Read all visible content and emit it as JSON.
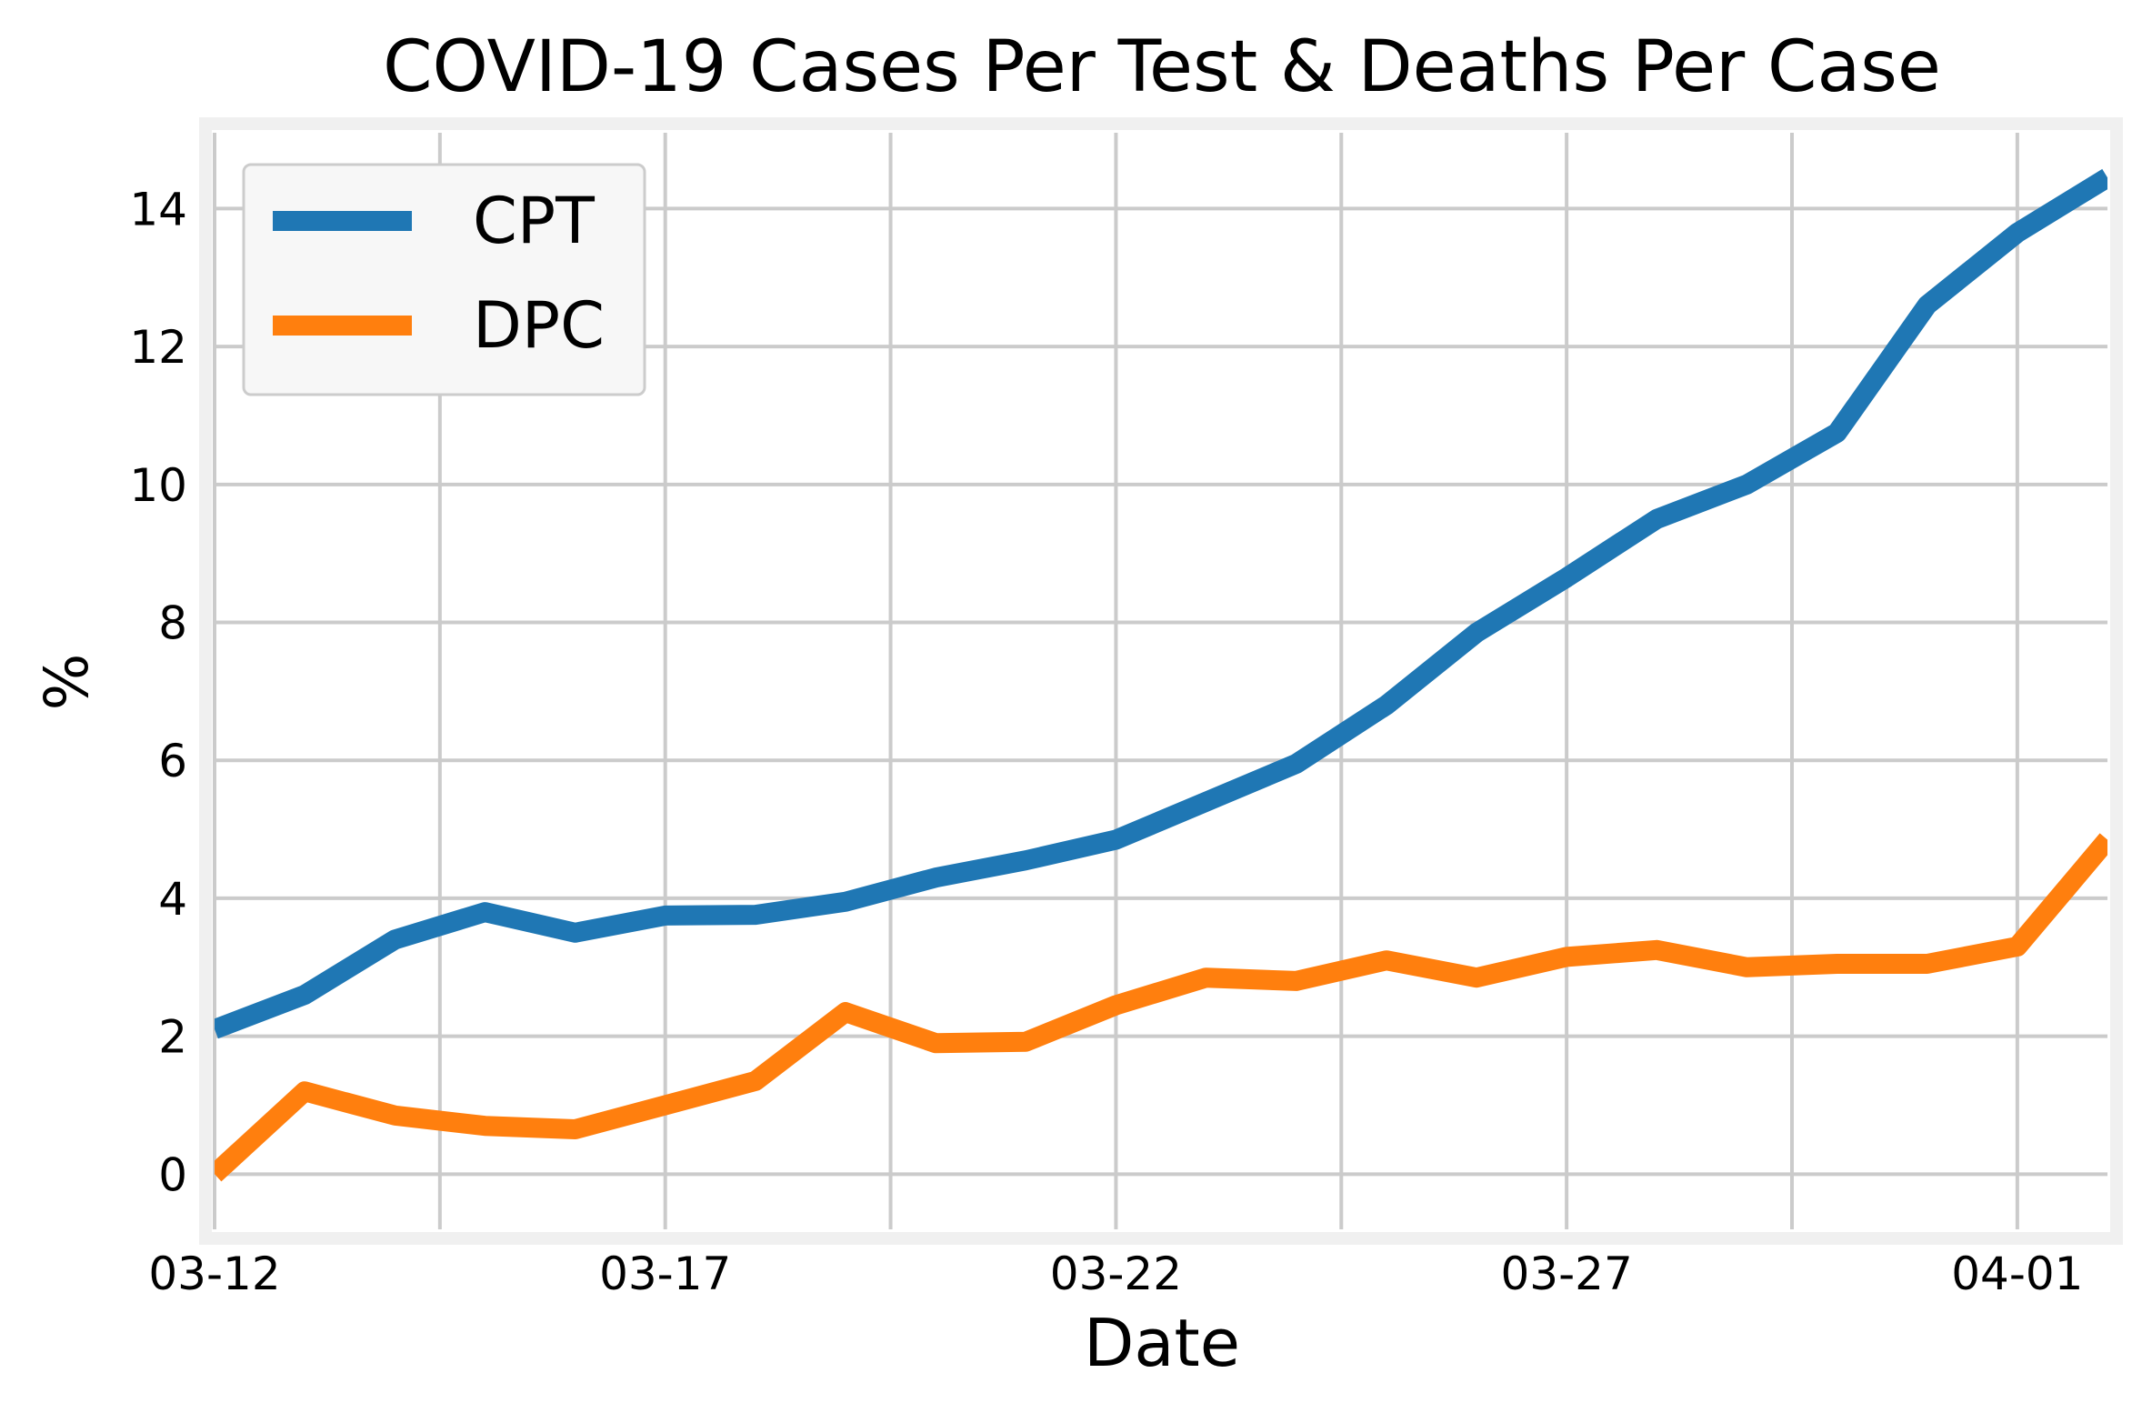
{
  "chart_data": {
    "type": "line",
    "title": "COVID-19 Cases Per Test & Deaths Per Case",
    "xlabel": "Date",
    "ylabel": "%",
    "x": [
      "03-12",
      "03-13",
      "03-14",
      "03-15",
      "03-16",
      "03-17",
      "03-18",
      "03-19",
      "03-20",
      "03-21",
      "03-22",
      "03-23",
      "03-24",
      "03-25",
      "03-26",
      "03-27",
      "03-28",
      "03-29",
      "03-30",
      "03-31",
      "04-01",
      "04-02"
    ],
    "xticks": [
      "03-12",
      "",
      "03-17",
      "",
      "03-22",
      "",
      "03-27",
      "",
      "04-01"
    ],
    "yticks": [
      "0",
      "2",
      "4",
      "6",
      "8",
      "10",
      "12",
      "14"
    ],
    "ylim": [
      -0.8,
      15.1
    ],
    "grid": true,
    "legend_position": "top-left",
    "series": [
      {
        "name": "CPT",
        "color": "#1f77b4",
        "values": [
          2.1,
          2.6,
          3.4,
          3.8,
          3.5,
          3.75,
          3.76,
          3.95,
          4.3,
          4.55,
          4.85,
          5.4,
          5.95,
          6.8,
          7.85,
          8.65,
          9.5,
          10.0,
          10.75,
          12.6,
          13.65,
          14.45
        ]
      },
      {
        "name": "DPC",
        "color": "#ff7f0e",
        "values": [
          0.0,
          1.2,
          0.85,
          0.7,
          0.65,
          1.0,
          1.35,
          2.35,
          1.9,
          1.92,
          2.45,
          2.85,
          2.8,
          3.1,
          2.85,
          3.15,
          3.25,
          3.0,
          3.05,
          3.05,
          3.3,
          4.85
        ]
      }
    ]
  }
}
